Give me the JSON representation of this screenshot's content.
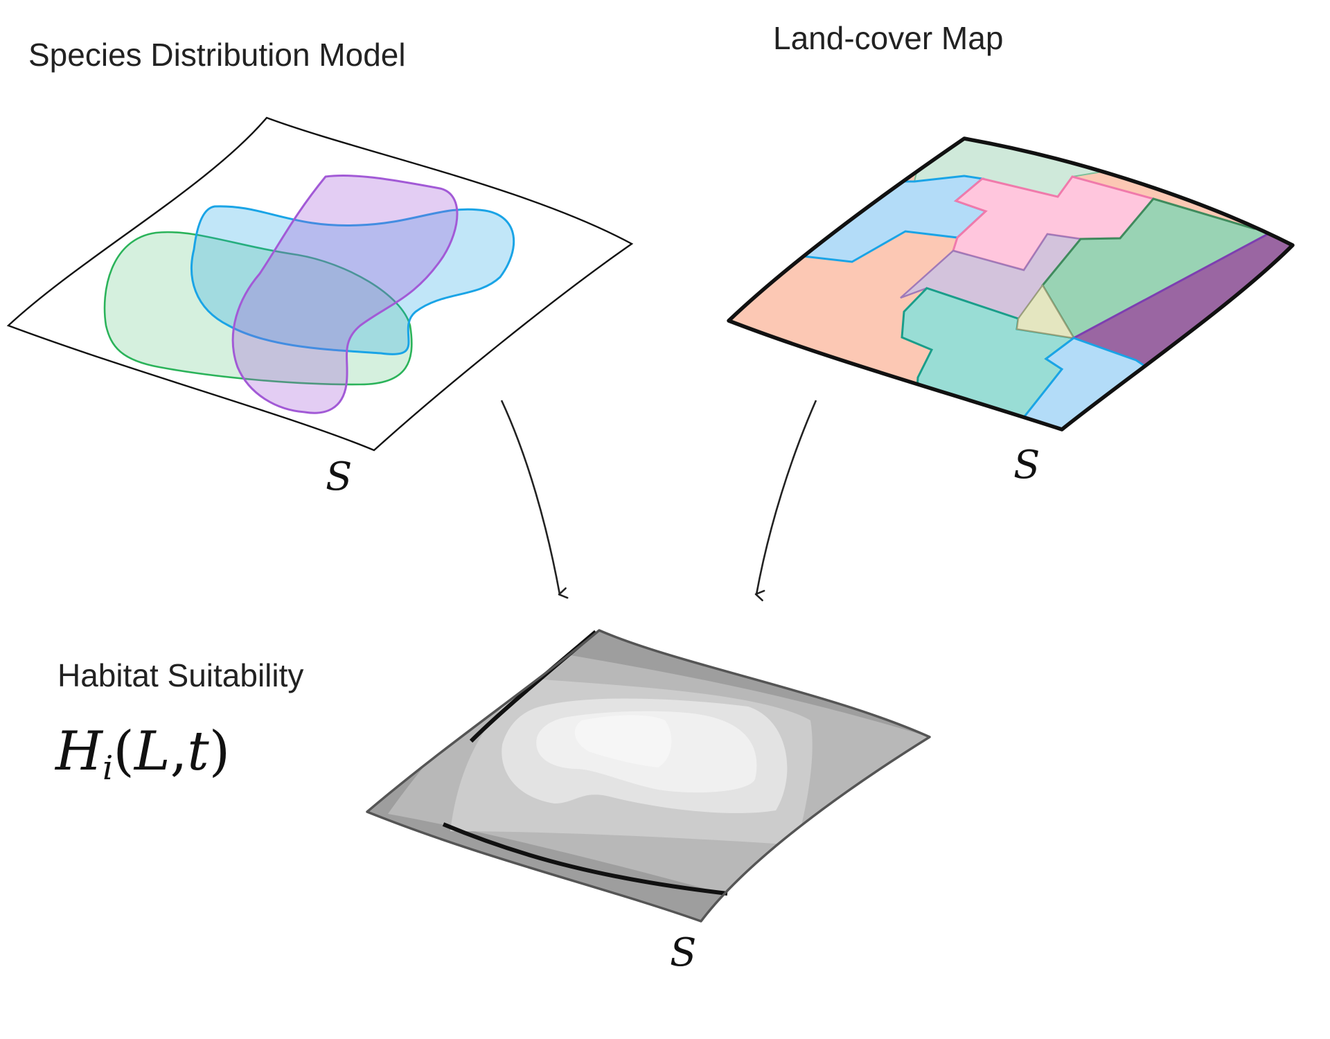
{
  "titles": {
    "sdm": "Species Distribution Model",
    "landcover": "Land-cover Map",
    "habitat": "Habitat Suitability"
  },
  "formula": {
    "symbol": "H",
    "subscript": "i",
    "open": "(",
    "arg1": "L",
    "comma": ",",
    "arg2": "t",
    "close": ")"
  },
  "space_label": "S",
  "colors": {
    "sdm_green": "#2bb35a",
    "sdm_blue": "#1aa4e6",
    "sdm_purple": "#a25ad6",
    "lc_mint": "#cfe9da",
    "lc_pink": "#ffc6dd",
    "lc_blue": "#b3dcf8",
    "lc_salmon": "#fcc8b4",
    "lc_lavender": "#d3c3dc",
    "lc_teal": "#99ddd5",
    "lc_green": "#99d3b4",
    "lc_yellow": "#e4e6c0",
    "lc_purple": "#9a66a2",
    "habitat_gray_dark": "#9e9e9e",
    "habitat_gray_light": "#f3f3f3"
  }
}
